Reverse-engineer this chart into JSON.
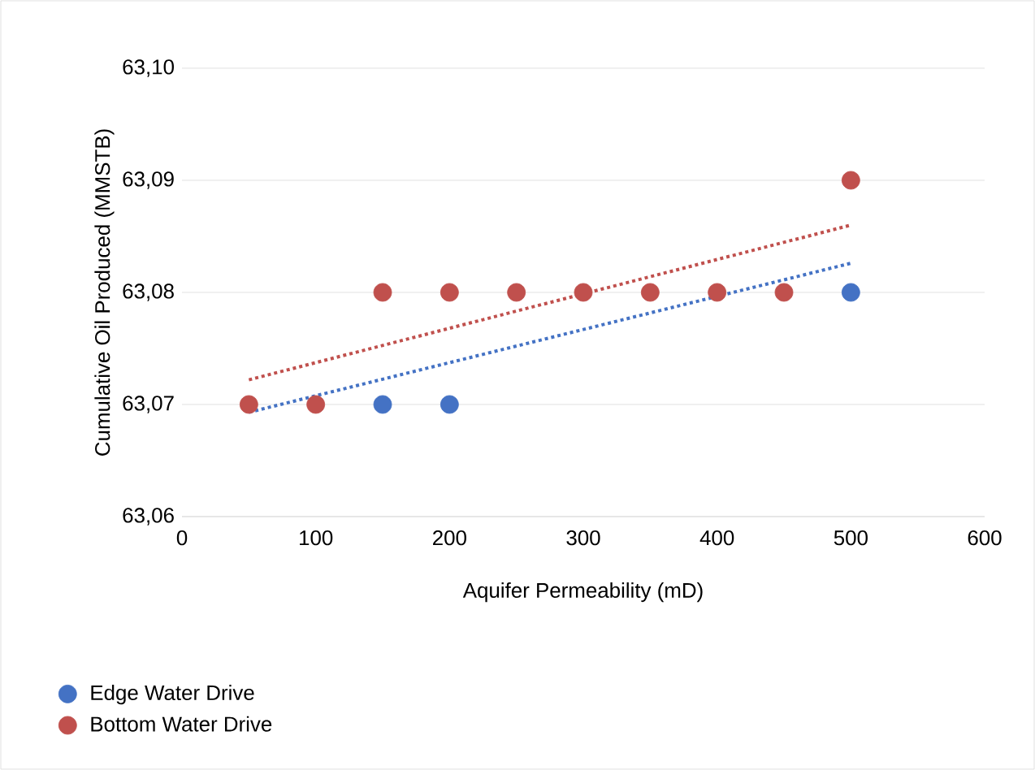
{
  "chart_data": {
    "type": "scatter",
    "xlabel": "Aquifer Permeability (mD)",
    "ylabel": "Cumulative Oil Produced (MMSTB)",
    "xlim": [
      0,
      600
    ],
    "xticks": [
      0,
      100,
      200,
      300,
      400,
      500,
      600
    ],
    "ylim": [
      63.06,
      63.1
    ],
    "yticks": [
      {
        "value": 63.06,
        "label": "63,06"
      },
      {
        "value": 63.07,
        "label": "63,07"
      },
      {
        "value": 63.08,
        "label": "63,08"
      },
      {
        "value": 63.09,
        "label": "63,09"
      },
      {
        "value": 63.1,
        "label": "63,10"
      }
    ],
    "grid": "y",
    "legend": "bottom",
    "series": [
      {
        "name": "Edge Water Drive",
        "color": "#4472c4",
        "x": [
          150,
          200,
          500
        ],
        "values": [
          63.07,
          63.07,
          63.08
        ]
      },
      {
        "name": "Bottom Water Drive",
        "color": "#c0504d",
        "x": [
          50,
          100,
          150,
          200,
          250,
          300,
          350,
          400,
          450,
          500
        ],
        "values": [
          63.07,
          63.07,
          63.08,
          63.08,
          63.08,
          63.08,
          63.08,
          63.08,
          63.08,
          63.09
        ]
      },
      {
        "type": "line",
        "color": "#4472c4",
        "line_style": "dotted",
        "marker": "none",
        "x": [
          50,
          500
        ],
        "values": [
          63.0693,
          63.0826
        ]
      },
      {
        "type": "line",
        "color": "#c0504d",
        "line_style": "dotted",
        "marker": "none",
        "x": [
          50,
          500
        ],
        "values": [
          63.0722,
          63.086
        ]
      }
    ]
  }
}
